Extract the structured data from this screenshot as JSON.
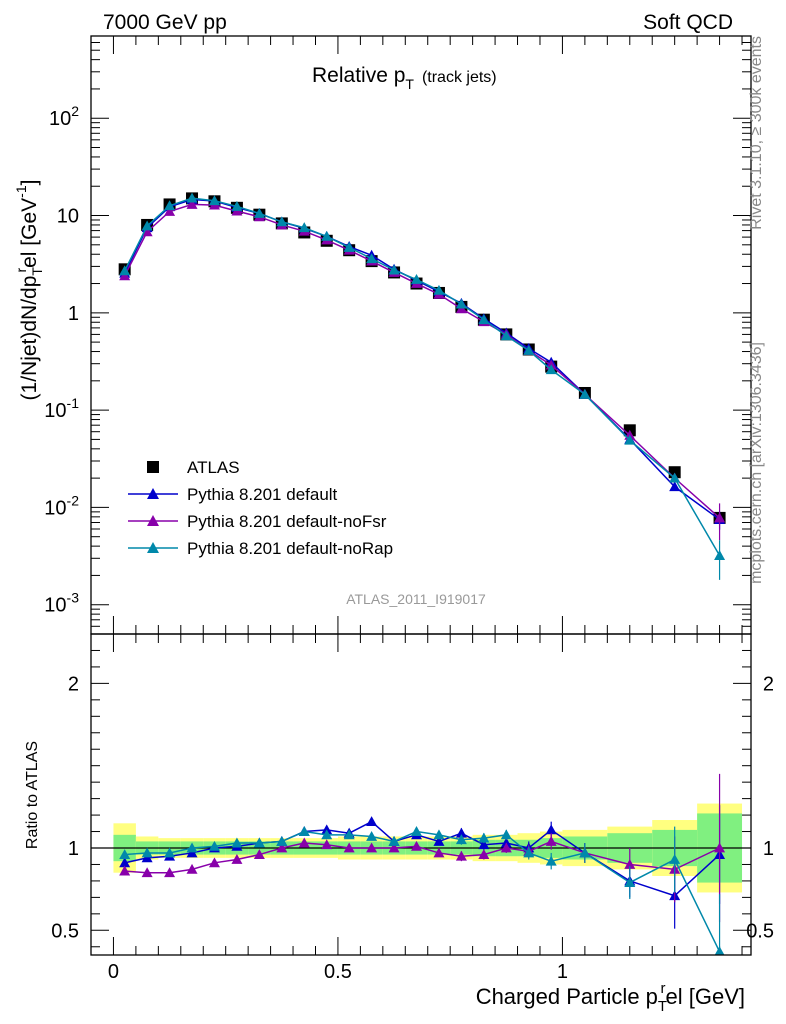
{
  "header": {
    "left": "7000 GeV pp",
    "right": "Soft QCD"
  },
  "side_labels": {
    "rivet": "Rivet 3.1.10, ≥ 300k events",
    "mcplots": "mcplots.cern.ch [arXiv:1306.3436]"
  },
  "chart_data": [
    {
      "type": "line",
      "panel": "main",
      "title": {
        "main": "Relative p",
        "sub": "T",
        "suffix": "(track jets)"
      },
      "ylabel": "(1/Njet)dN/dp",
      "ylabel_parts": {
        "pre": "(1/Njet)dN/dp",
        "sub": "T",
        "sup": "r",
        "mid": "el [GeV",
        "unit_sup": "-1",
        "post": "]"
      },
      "yscale": "log",
      "ylim": [
        0.0005,
        700
      ],
      "xlim": [
        -0.05,
        1.42
      ],
      "y_ticks": [
        {
          "v": 0.001,
          "base": "10",
          "exp": "-3"
        },
        {
          "v": 0.01,
          "base": "10",
          "exp": "-2"
        },
        {
          "v": 0.1,
          "base": "10",
          "exp": "-1"
        },
        {
          "v": 1,
          "base": "1",
          "exp": ""
        },
        {
          "v": 10,
          "base": "10",
          "exp": ""
        },
        {
          "v": 100,
          "base": "10",
          "exp": "2"
        }
      ],
      "watermark": "ATLAS_2011_I919017",
      "legend_position": "bottom-left",
      "x": [
        0.025,
        0.075,
        0.125,
        0.175,
        0.225,
        0.275,
        0.325,
        0.375,
        0.425,
        0.475,
        0.525,
        0.575,
        0.625,
        0.675,
        0.725,
        0.775,
        0.825,
        0.875,
        0.925,
        0.975,
        1.05,
        1.15,
        1.25,
        1.35
      ],
      "series": [
        {
          "name": "ATLAS",
          "color": "#000000",
          "marker": "square",
          "values": [
            2.8,
            8.0,
            13.0,
            15.0,
            14.0,
            12.0,
            10.2,
            8.3,
            6.7,
            5.5,
            4.4,
            3.4,
            2.6,
            2.0,
            1.6,
            1.15,
            0.85,
            0.6,
            0.42,
            0.28,
            0.15,
            0.062,
            0.023,
            0.0078
          ]
        },
        {
          "name": "Pythia 8.201 default",
          "color": "#0000cc",
          "marker": "triangle",
          "values": [
            2.55,
            7.5,
            12.3,
            14.6,
            14.1,
            12.1,
            10.5,
            8.6,
            7.4,
            6.1,
            4.8,
            3.9,
            2.8,
            2.15,
            1.65,
            1.25,
            0.87,
            0.62,
            0.43,
            0.31,
            0.145,
            0.05,
            0.0163,
            0.0075
          ]
        },
        {
          "name": "Pythia 8.201 default-noFsr",
          "color": "#8800aa",
          "marker": "triangle",
          "values": [
            2.4,
            6.8,
            11.0,
            13.0,
            12.8,
            11.1,
            9.7,
            8.0,
            6.9,
            5.6,
            4.4,
            3.4,
            2.6,
            2.0,
            1.55,
            1.1,
            0.81,
            0.6,
            0.41,
            0.29,
            0.145,
            0.055,
            0.02,
            0.0078
          ]
        },
        {
          "name": "Pythia 8.201 default-noRap",
          "color": "#0088aa",
          "marker": "triangle",
          "values": [
            2.7,
            7.8,
            12.6,
            15.1,
            14.2,
            12.4,
            10.5,
            8.6,
            7.5,
            6.1,
            4.7,
            3.6,
            2.75,
            2.2,
            1.7,
            1.23,
            0.85,
            0.58,
            0.41,
            0.26,
            0.145,
            0.049,
            0.02,
            0.0032
          ]
        }
      ]
    },
    {
      "type": "line",
      "panel": "ratio",
      "ylabel": "Ratio to ATLAS",
      "xlabel": "Charged Particle p",
      "xlabel_parts": {
        "pre": "Charged Particle p",
        "sub": "T",
        "sup": "r",
        "post": "el [GeV]"
      },
      "ylim": [
        0.35,
        2.3
      ],
      "xlim": [
        -0.05,
        1.42
      ],
      "y_ticks": [
        0.5,
        1,
        2
      ],
      "x_ticks": [
        {
          "v": 0,
          "label": "0"
        },
        {
          "v": 0.5,
          "label": "0.5"
        },
        {
          "v": 1,
          "label": "1"
        }
      ],
      "bands": {
        "bins": [
          [
            0.0,
            0.05
          ],
          [
            0.05,
            0.1
          ],
          [
            0.1,
            0.15
          ],
          [
            0.15,
            0.2
          ],
          [
            0.2,
            0.25
          ],
          [
            0.25,
            0.3
          ],
          [
            0.3,
            0.35
          ],
          [
            0.35,
            0.4
          ],
          [
            0.4,
            0.45
          ],
          [
            0.45,
            0.5
          ],
          [
            0.5,
            0.55
          ],
          [
            0.55,
            0.6
          ],
          [
            0.6,
            0.65
          ],
          [
            0.65,
            0.7
          ],
          [
            0.7,
            0.75
          ],
          [
            0.75,
            0.8
          ],
          [
            0.8,
            0.85
          ],
          [
            0.85,
            0.9
          ],
          [
            0.9,
            0.95
          ],
          [
            0.95,
            1.0
          ],
          [
            1.0,
            1.1
          ],
          [
            1.1,
            1.2
          ],
          [
            1.2,
            1.3
          ],
          [
            1.3,
            1.4
          ]
        ],
        "yellow": [
          0.15,
          0.07,
          0.06,
          0.06,
          0.06,
          0.06,
          0.06,
          0.06,
          0.06,
          0.06,
          0.07,
          0.07,
          0.07,
          0.07,
          0.07,
          0.07,
          0.08,
          0.08,
          0.09,
          0.1,
          0.11,
          0.13,
          0.17,
          0.27
        ],
        "green": [
          0.08,
          0.04,
          0.04,
          0.04,
          0.04,
          0.04,
          0.04,
          0.04,
          0.04,
          0.04,
          0.04,
          0.04,
          0.04,
          0.04,
          0.04,
          0.04,
          0.05,
          0.05,
          0.05,
          0.06,
          0.07,
          0.09,
          0.11,
          0.21
        ],
        "yellow_color": "#ffff80",
        "green_color": "#80f080"
      },
      "x": [
        0.025,
        0.075,
        0.125,
        0.175,
        0.225,
        0.275,
        0.325,
        0.375,
        0.425,
        0.475,
        0.525,
        0.575,
        0.625,
        0.675,
        0.725,
        0.775,
        0.825,
        0.875,
        0.925,
        0.975,
        1.05,
        1.15,
        1.25,
        1.35
      ],
      "series": [
        {
          "name": "Pythia 8.201 default",
          "color": "#0000cc",
          "values": [
            0.91,
            0.94,
            0.95,
            0.97,
            1.0,
            1.01,
            1.03,
            1.04,
            1.1,
            1.11,
            1.09,
            1.16,
            1.04,
            1.08,
            1.04,
            1.09,
            1.02,
            1.03,
            1.0,
            1.11,
            0.97,
            0.8,
            0.71,
            0.96
          ],
          "err": [
            0.02,
            0.02,
            0.02,
            0.02,
            0.02,
            0.02,
            0.02,
            0.02,
            0.02,
            0.02,
            0.02,
            0.02,
            0.02,
            0.02,
            0.02,
            0.03,
            0.03,
            0.03,
            0.04,
            0.05,
            0.06,
            0.1,
            0.2,
            0.3
          ]
        },
        {
          "name": "Pythia 8.201 default-noFsr",
          "color": "#8800aa",
          "values": [
            0.86,
            0.85,
            0.85,
            0.87,
            0.91,
            0.93,
            0.96,
            1.0,
            1.03,
            1.02,
            1.0,
            1.0,
            1.0,
            1.01,
            0.97,
            0.95,
            0.96,
            1.0,
            0.98,
            1.04,
            0.97,
            0.9,
            0.87,
            1.0
          ],
          "err": [
            0.02,
            0.02,
            0.02,
            0.02,
            0.02,
            0.02,
            0.02,
            0.02,
            0.02,
            0.02,
            0.02,
            0.02,
            0.02,
            0.02,
            0.02,
            0.03,
            0.03,
            0.03,
            0.04,
            0.05,
            0.06,
            0.1,
            0.2,
            0.45
          ]
        },
        {
          "name": "Pythia 8.201 default-noRap",
          "color": "#0088aa",
          "values": [
            0.96,
            0.97,
            0.97,
            1.0,
            1.01,
            1.03,
            1.03,
            1.04,
            1.1,
            1.08,
            1.08,
            1.07,
            1.04,
            1.1,
            1.08,
            1.05,
            1.06,
            1.08,
            0.97,
            0.92,
            0.97,
            0.79,
            0.93,
            0.37
          ],
          "err": [
            0.02,
            0.02,
            0.02,
            0.02,
            0.02,
            0.02,
            0.02,
            0.02,
            0.02,
            0.02,
            0.02,
            0.02,
            0.02,
            0.02,
            0.02,
            0.03,
            0.03,
            0.03,
            0.04,
            0.05,
            0.06,
            0.1,
            0.2,
            0.35
          ]
        }
      ]
    }
  ]
}
